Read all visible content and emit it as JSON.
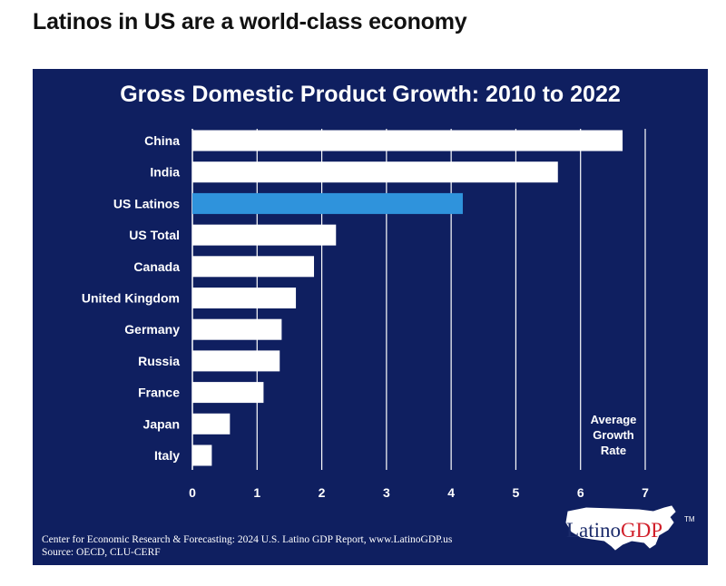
{
  "headline": "Latinos in US are a world-class economy",
  "chart_data": {
    "type": "bar",
    "orientation": "horizontal",
    "title": "Gross Domestic Product Growth: 2010 to 2022",
    "categories": [
      "China",
      "India",
      "US Latinos",
      "US Total",
      "Canada",
      "United Kingdom",
      "Germany",
      "Russia",
      "France",
      "Japan",
      "Italy"
    ],
    "values": [
      6.65,
      5.65,
      4.18,
      2.22,
      1.88,
      1.6,
      1.38,
      1.35,
      1.1,
      0.58,
      0.3
    ],
    "highlight": "US Latinos",
    "colors": {
      "bar": "#ffffff",
      "highlight": "#2f93dc",
      "background": "#0f1f60",
      "grid": "#ffffff"
    },
    "xlim": [
      0,
      7
    ],
    "xticks": [
      "0",
      "1",
      "2",
      "3",
      "4",
      "5",
      "6",
      "7"
    ],
    "grid": "vertical",
    "annotation": [
      "Average",
      "Growth",
      "Rate"
    ]
  },
  "footer": {
    "line1": "Center for Economic Research & Forecasting: 2024 U.S. Latino GDP Report, www.LatinoGDP.us",
    "line2": "Source: OECD, CLU-CERF"
  },
  "logo": {
    "part1": "Latino",
    "part2": "GDP",
    "tm": "TM"
  }
}
